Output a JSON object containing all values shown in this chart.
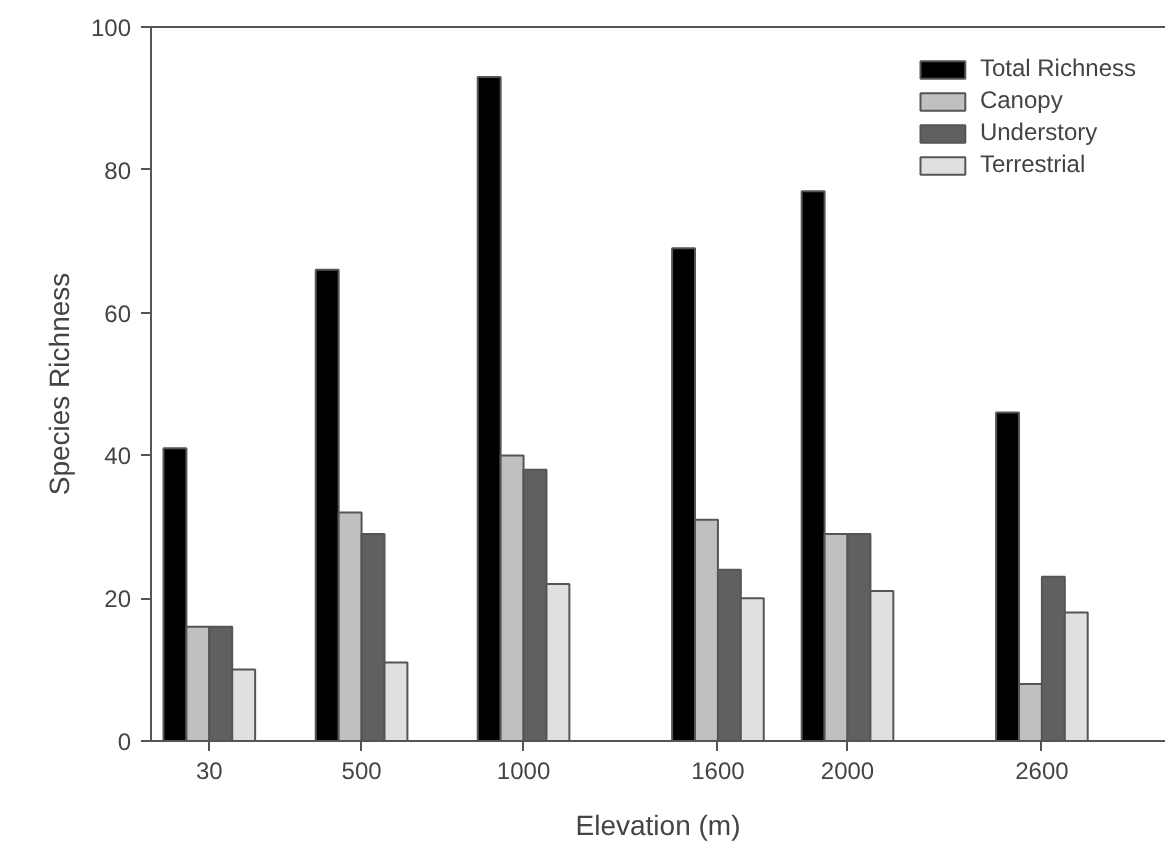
{
  "chart_data": {
    "type": "bar",
    "xlabel": "Elevation (m)",
    "ylabel": "Species Richness",
    "x": [
      30,
      500,
      1000,
      1600,
      2000,
      2600
    ],
    "xlim": [
      -150,
      2980
    ],
    "xticks": [
      30,
      500,
      1000,
      1600,
      2000,
      2600
    ],
    "ylim": [
      0,
      100
    ],
    "yticks": [
      0,
      20,
      40,
      60,
      80,
      100
    ],
    "grid": false,
    "legend": "top right",
    "series": [
      {
        "name": "Total Richness",
        "color": "#000000",
        "values": [
          41,
          66,
          93,
          69,
          77,
          46
        ]
      },
      {
        "name": "Canopy",
        "color": "#c0c0c0",
        "values": [
          16,
          32,
          40,
          31,
          29,
          8
        ]
      },
      {
        "name": "Understory",
        "color": "#606060",
        "values": [
          16,
          29,
          38,
          24,
          29,
          23
        ]
      },
      {
        "name": "Terrestrial",
        "color": "#e0e0e0",
        "values": [
          10,
          11,
          22,
          20,
          21,
          18
        ]
      }
    ]
  }
}
